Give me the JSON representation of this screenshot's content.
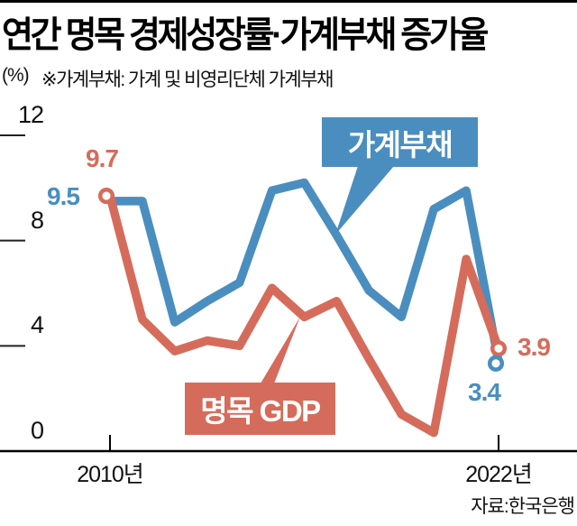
{
  "chart_data": {
    "type": "line",
    "title": "연간 명목 경제성장률·가계부채 증가율",
    "unit": "(%)",
    "note": "※가계부채: 가계 및 비영리단체 가계부채",
    "source": "자료:한국은행",
    "x": [
      2010,
      2011,
      2012,
      2013,
      2014,
      2015,
      2016,
      2017,
      2018,
      2019,
      2020,
      2021,
      2022
    ],
    "xtick_labels": [
      "2010년",
      "2022년"
    ],
    "ylim": [
      0,
      12
    ],
    "yticks": [
      12,
      8,
      4,
      0
    ],
    "ytick_labels": [
      "12",
      "8",
      "4",
      "0"
    ],
    "grid": false,
    "legend": "on-chart callout boxes",
    "series": [
      {
        "name": "가계부채",
        "color": "#4a8ebf",
        "values": [
          9.5,
          9.5,
          4.9,
          5.7,
          6.4,
          9.9,
          10.2,
          8.2,
          6.1,
          5.1,
          9.2,
          9.9,
          3.4
        ],
        "start_label": "9.5",
        "end_label": "3.4"
      },
      {
        "name": "명목 GDP",
        "color": "#d56c5b",
        "values": [
          9.7,
          5.0,
          3.8,
          4.2,
          4.0,
          6.2,
          5.1,
          5.7,
          3.5,
          1.4,
          0.7,
          7.3,
          3.9
        ],
        "start_label": "9.7",
        "end_label": "3.9"
      }
    ]
  }
}
